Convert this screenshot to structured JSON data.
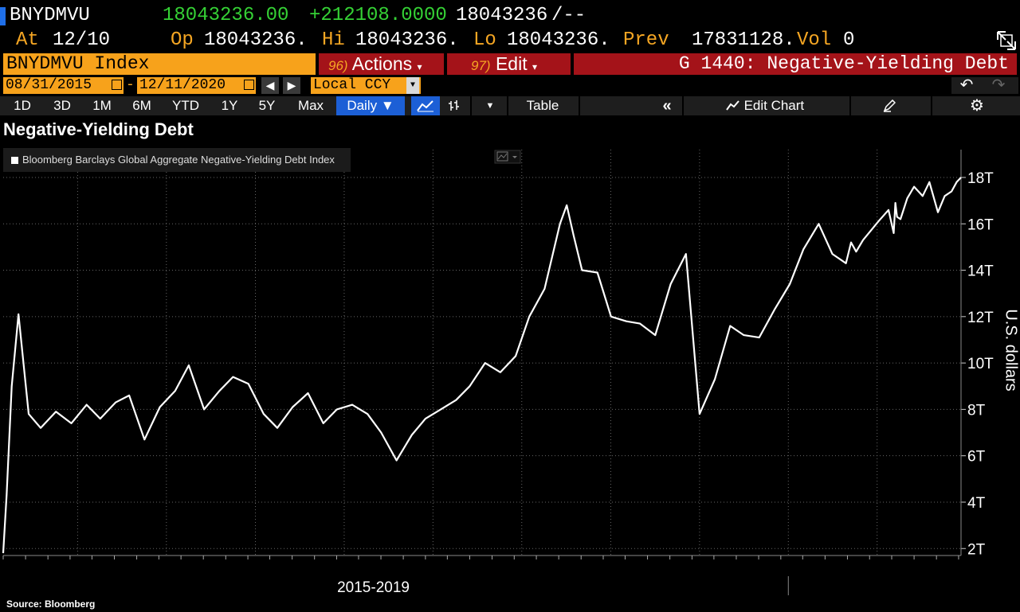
{
  "quote": {
    "ticker": "BNYDMVU",
    "last": "18043236.00",
    "change": "+212108.0000",
    "bid": "18043236",
    "ask": "/--"
  },
  "stats": {
    "at_label": "At",
    "at_date": "12/10",
    "open_label": "Op",
    "open": "18043236.",
    "high_label": "Hi",
    "high": "18043236.",
    "low_label": "Lo",
    "low": "18043236.",
    "prev_label": "Prev",
    "prev": "17831128.",
    "vol_label": "Vol",
    "vol": "0"
  },
  "command_bar": {
    "security": "BNYDMVU Index",
    "actions_num": "96)",
    "actions_label": "Actions",
    "edit_num": "97)",
    "edit_label": "Edit",
    "function_title": "G 1440: Negative-Yielding Debt"
  },
  "date_range": {
    "start": "08/31/2015",
    "separator": "-",
    "end": "12/11/2020",
    "currency": "Local CCY"
  },
  "toolbar": {
    "periods": [
      "1D",
      "3D",
      "1M",
      "6M",
      "YTD",
      "1Y",
      "5Y",
      "Max"
    ],
    "frequency": "Daily",
    "table_label": "Table",
    "edit_chart_label": "Edit Chart"
  },
  "colors": {
    "accent_orange": "#f7a21b",
    "menu_red": "#a41319",
    "positive_green": "#35d135",
    "selected_blue": "#1c5fd6",
    "line": "#ffffff",
    "background": "#000000"
  },
  "chart_data": {
    "type": "line",
    "title": "Negative-Yielding Debt",
    "source": "Source: Bloomberg",
    "ylabel": "U.S. dollars",
    "xlabel": "2015-2019",
    "ylim": [
      1.7,
      19.2
    ],
    "y_ticks": [
      2,
      4,
      6,
      8,
      10,
      12,
      14,
      16,
      18
    ],
    "y_tick_labels": [
      "2T",
      "4T",
      "6T",
      "8T",
      "10T",
      "12T",
      "14T",
      "16T",
      "18T"
    ],
    "grid": true,
    "legend_position": "top-left",
    "x_range": [
      "2010-03-01",
      "2020-12-11"
    ],
    "series": [
      {
        "name": "Bloomberg Barclays Global Aggregate Negative-Yielding Debt Index",
        "x": [
          "2010-03-01",
          "2010-03-15",
          "2010-04-05",
          "2010-05-03",
          "2010-06-14",
          "2010-08-02",
          "2010-10-04",
          "2010-12-06",
          "2011-02-07",
          "2011-04-04",
          "2011-06-06",
          "2011-08-01",
          "2011-10-03",
          "2011-12-05",
          "2012-02-06",
          "2012-04-02",
          "2012-06-04",
          "2012-08-06",
          "2012-10-01",
          "2012-12-03",
          "2013-02-04",
          "2013-04-01",
          "2013-06-03",
          "2013-08-05",
          "2013-10-07",
          "2013-12-02",
          "2014-02-03",
          "2014-04-07",
          "2014-06-02",
          "2014-08-04",
          "2014-10-06",
          "2014-12-01",
          "2015-02-02",
          "2015-04-06",
          "2015-06-01",
          "2015-08-03",
          "2015-10-05",
          "2015-12-07",
          "2016-02-01",
          "2016-04-04",
          "2016-06-06",
          "2016-07-04",
          "2016-08-01",
          "2016-09-05",
          "2016-11-07",
          "2017-01-02",
          "2017-03-06",
          "2017-05-01",
          "2017-07-03",
          "2017-09-04",
          "2017-11-06",
          "2018-01-01",
          "2018-03-05",
          "2018-05-07",
          "2018-07-02",
          "2018-09-03",
          "2018-11-05",
          "2019-01-07",
          "2019-03-04",
          "2019-05-06",
          "2019-07-01",
          "2019-08-26",
          "2019-09-16",
          "2019-10-07",
          "2019-11-04",
          "2020-01-06",
          "2020-02-17",
          "2020-03-09",
          "2020-03-16",
          "2020-03-23",
          "2020-04-06",
          "2020-05-04",
          "2020-06-01",
          "2020-07-06",
          "2020-08-03",
          "2020-09-07",
          "2020-10-05",
          "2020-11-02",
          "2020-11-23",
          "2020-12-11"
        ],
        "values": [
          1.8,
          4.3,
          9.0,
          12.1,
          7.8,
          7.2,
          7.9,
          7.4,
          8.2,
          7.6,
          8.3,
          8.6,
          6.7,
          8.1,
          8.8,
          9.9,
          8.0,
          8.8,
          9.4,
          9.1,
          7.8,
          7.2,
          8.1,
          8.7,
          7.4,
          8.0,
          8.2,
          7.8,
          7.0,
          5.8,
          6.9,
          7.6,
          8.0,
          8.4,
          9.0,
          10.0,
          9.6,
          10.3,
          12.0,
          13.2,
          16.0,
          16.8,
          15.5,
          14.0,
          13.9,
          12.0,
          11.8,
          11.7,
          11.2,
          13.4,
          14.7,
          7.8,
          9.3,
          11.6,
          11.2,
          11.1,
          12.3,
          13.4,
          14.9,
          16.0,
          14.7,
          14.3,
          15.2,
          14.8,
          15.3,
          16.1,
          16.6,
          15.6,
          16.9,
          16.3,
          16.2,
          17.1,
          17.6,
          17.2,
          17.8,
          16.5,
          17.2,
          17.4,
          17.8,
          18.0
        ]
      }
    ]
  }
}
